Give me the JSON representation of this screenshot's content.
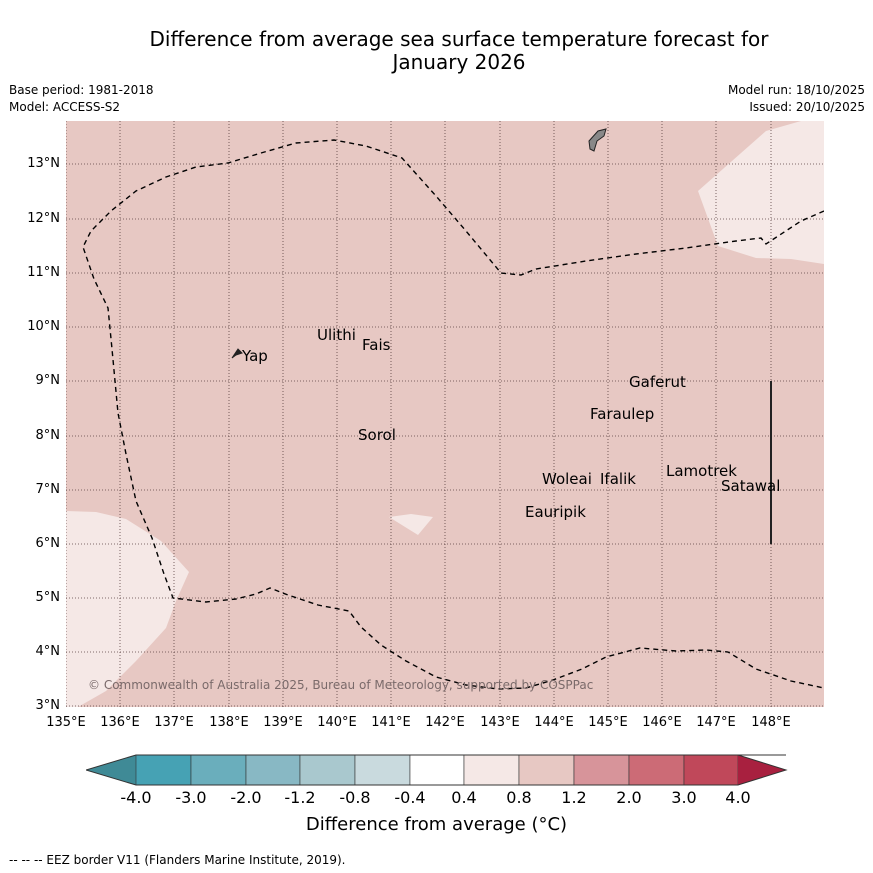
{
  "title_line1": "Difference from average sea surface temperature forecast for",
  "title_line2": "January 2026",
  "base_period": "Base period: 1981-2018",
  "model": "Model: ACCESS-S2",
  "model_run": "Model run: 18/10/2025",
  "issued": "Issued: 20/10/2025",
  "lat_labels": [
    "13°N",
    "12°N",
    "11°N",
    "10°N",
    "9°N",
    "8°N",
    "7°N",
    "6°N",
    "5°N",
    "4°N",
    "3°N"
  ],
  "lon_labels": [
    "135°E",
    "136°E",
    "137°E",
    "138°E",
    "139°E",
    "140°E",
    "141°E",
    "142°E",
    "143°E",
    "144°E",
    "145°E",
    "146°E",
    "147°E",
    "148°E"
  ],
  "places": [
    "Yap",
    "Ulithi",
    "Fais",
    "Sorol",
    "Gaferut",
    "Faraulep",
    "Lamotrek",
    "Woleai",
    "Ifalik",
    "Satawal",
    "Eauripik"
  ],
  "copyright": "© Commonwealth of Australia 2025, Bureau of Meteorology, supported by COSPPac",
  "colorbar": {
    "ticks": [
      "-4.0",
      "-3.0",
      "-2.0",
      "-1.2",
      "-0.8",
      "-0.4",
      "0.4",
      "0.8",
      "1.2",
      "2.0",
      "3.0",
      "4.0"
    ],
    "label": "Difference from average (°C)",
    "colors": [
      "#3f8a96",
      "#46a2b4",
      "#6aaebc",
      "#88b8c4",
      "#a9c8ce",
      "#c9dade",
      "#ffffff",
      "#f5e8e6",
      "#e7c8c3",
      "#d7949a",
      "#cc6b76",
      "#c0485a",
      "#a8203f"
    ]
  },
  "footnote": "--  --  -- EEZ border V11 (Flanders Marine Institute, 2019)."
}
